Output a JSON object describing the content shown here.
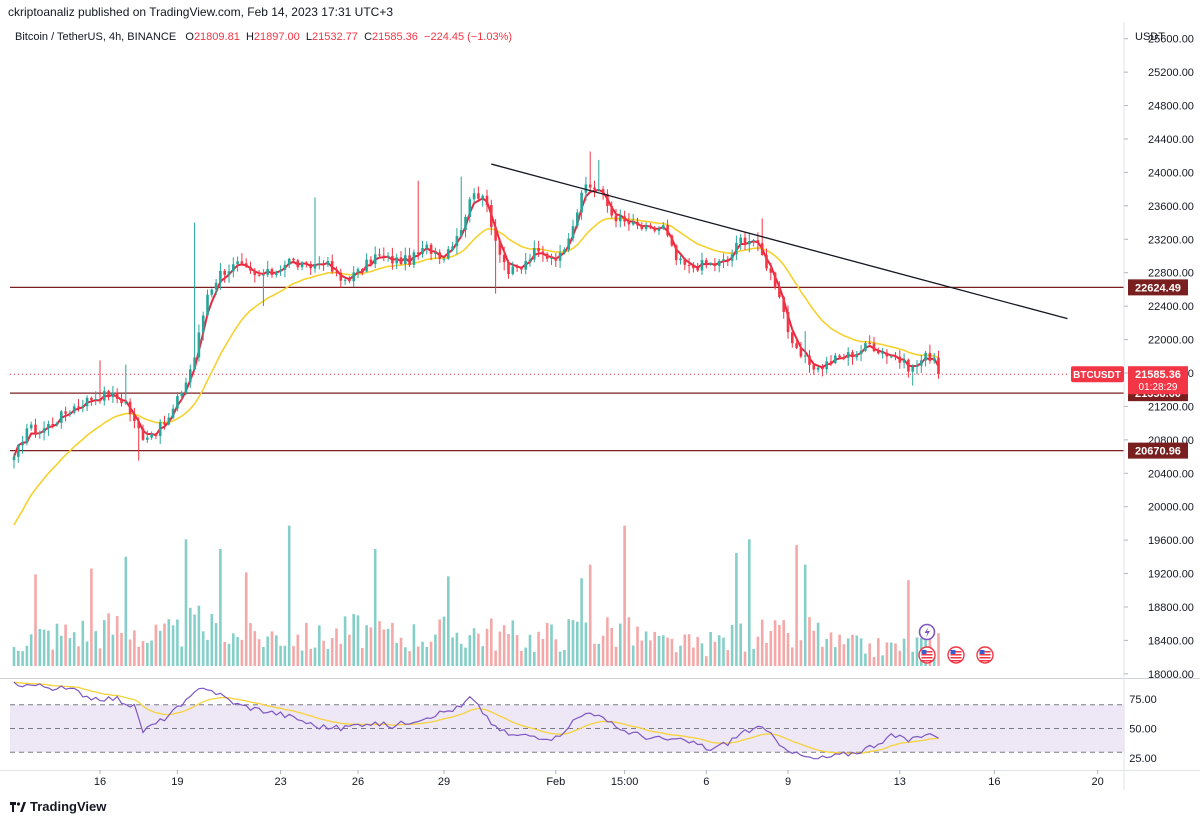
{
  "header": {
    "publisher_line": "ckriptoanaliz published on TradingView.com, Feb 14, 2023 17:31 UTC+3"
  },
  "legend": {
    "symbol": "Bitcoin / TetherUS, 4h, BINANCE",
    "open_label": "O",
    "open": "21809.81",
    "high_label": "H",
    "high": "21897.00",
    "low_label": "L",
    "low": "21532.77",
    "close_label": "C",
    "close": "21585.36",
    "change": "−224.45 (−1.03%)"
  },
  "footer": {
    "brand": "TradingView"
  },
  "colors": {
    "up": "#26a69a",
    "down": "#f23645",
    "up_volume": "#86cfc8",
    "down_volume": "#f4a8a8",
    "ema_fast": "#e8263f",
    "ema_slow": "#f6d12e",
    "trendline": "#131722",
    "level": "#7a1f1f",
    "rsi": "#7e57c2",
    "rsi_signal": "#f7d23a",
    "rsi_band": "#ede7f6"
  },
  "chart_data": {
    "type": "candlestick",
    "symbol": "BTCUSDT",
    "currency": "USDT",
    "interval": "4h",
    "price_axis": {
      "ticks": [
        18000,
        18400,
        18800,
        19200,
        19600,
        20000,
        20400,
        20800,
        21200,
        21600,
        22000,
        22400,
        22800,
        23200,
        23600,
        24000,
        24400,
        24800,
        25200,
        25600
      ],
      "range": [
        17950,
        25800
      ]
    },
    "time_axis": {
      "labels": [
        "16",
        "19",
        "23",
        "26",
        "29",
        "Feb",
        "15:00",
        "6",
        "9",
        "13",
        "16",
        "20"
      ],
      "label_bars": [
        20,
        38,
        62,
        80,
        100,
        126,
        142,
        161,
        180,
        206,
        228,
        252
      ],
      "bar_count": 216
    },
    "price_anchors": [
      [
        0,
        20550
      ],
      [
        3,
        20950
      ],
      [
        6,
        20900
      ],
      [
        10,
        21050
      ],
      [
        14,
        21200
      ],
      [
        18,
        21300
      ],
      [
        22,
        21350
      ],
      [
        26,
        21250
      ],
      [
        28,
        21000
      ],
      [
        30,
        20850
      ],
      [
        33,
        20900
      ],
      [
        36,
        21050
      ],
      [
        40,
        21500
      ],
      [
        42,
        21800
      ],
      [
        45,
        22550
      ],
      [
        48,
        22800
      ],
      [
        52,
        22900
      ],
      [
        56,
        22750
      ],
      [
        60,
        22800
      ],
      [
        64,
        22950
      ],
      [
        68,
        22850
      ],
      [
        72,
        22950
      ],
      [
        76,
        22700
      ],
      [
        80,
        22800
      ],
      [
        84,
        23000
      ],
      [
        88,
        22950
      ],
      [
        92,
        22950
      ],
      [
        96,
        23100
      ],
      [
        100,
        23000
      ],
      [
        104,
        23350
      ],
      [
        107,
        23800
      ],
      [
        110,
        23600
      ],
      [
        112,
        23200
      ],
      [
        115,
        22800
      ],
      [
        118,
        22850
      ],
      [
        121,
        23050
      ],
      [
        124,
        23000
      ],
      [
        127,
        23000
      ],
      [
        130,
        23400
      ],
      [
        133,
        23850
      ],
      [
        136,
        23800
      ],
      [
        139,
        23500
      ],
      [
        142,
        23400
      ],
      [
        145,
        23350
      ],
      [
        148,
        23300
      ],
      [
        151,
        23350
      ],
      [
        154,
        22950
      ],
      [
        157,
        22850
      ],
      [
        160,
        22900
      ],
      [
        163,
        22900
      ],
      [
        166,
        22950
      ],
      [
        169,
        23200
      ],
      [
        172,
        23200
      ],
      [
        175,
        22900
      ],
      [
        178,
        22550
      ],
      [
        181,
        21900
      ],
      [
        184,
        21750
      ],
      [
        187,
        21650
      ],
      [
        190,
        21750
      ],
      [
        193,
        21800
      ],
      [
        196,
        21850
      ],
      [
        199,
        21950
      ],
      [
        202,
        21850
      ],
      [
        205,
        21800
      ],
      [
        207,
        21700
      ],
      [
        209,
        21650
      ],
      [
        212,
        21800
      ],
      [
        214,
        21800
      ],
      [
        215,
        21585
      ]
    ],
    "price_spikes": [
      [
        20,
        21750
      ],
      [
        26,
        21700
      ],
      [
        29,
        20550
      ],
      [
        42,
        23400
      ],
      [
        58,
        22400
      ],
      [
        64,
        22950
      ],
      [
        70,
        23700
      ],
      [
        94,
        23900
      ],
      [
        104,
        23950
      ],
      [
        112,
        22550
      ],
      [
        134,
        24250
      ],
      [
        136,
        24150
      ],
      [
        174,
        23450
      ],
      [
        209,
        21450
      ],
      [
        184,
        22100
      ]
    ],
    "volume_anchors": [
      [
        0,
        12
      ],
      [
        10,
        14
      ],
      [
        20,
        16
      ],
      [
        28,
        18
      ],
      [
        30,
        12
      ],
      [
        38,
        14
      ],
      [
        42,
        18
      ],
      [
        46,
        16
      ],
      [
        54,
        12
      ],
      [
        62,
        14
      ],
      [
        70,
        12
      ],
      [
        80,
        16
      ],
      [
        90,
        13
      ],
      [
        100,
        15
      ],
      [
        110,
        15
      ],
      [
        120,
        12
      ],
      [
        130,
        15
      ],
      [
        140,
        16
      ],
      [
        150,
        10
      ],
      [
        160,
        9
      ],
      [
        170,
        14
      ],
      [
        180,
        13
      ],
      [
        186,
        16
      ],
      [
        190,
        10
      ],
      [
        200,
        8
      ],
      [
        208,
        9
      ],
      [
        215,
        12
      ]
    ],
    "volume_spikes": [
      [
        5,
        47
      ],
      [
        18,
        50
      ],
      [
        26,
        56
      ],
      [
        40,
        65
      ],
      [
        48,
        60
      ],
      [
        54,
        48
      ],
      [
        64,
        72
      ],
      [
        84,
        60
      ],
      [
        101,
        46
      ],
      [
        132,
        45
      ],
      [
        134,
        52
      ],
      [
        142,
        72
      ],
      [
        168,
        58
      ],
      [
        171,
        65
      ],
      [
        182,
        62
      ],
      [
        184,
        52
      ],
      [
        208,
        44
      ]
    ],
    "rsi_anchors": [
      [
        0,
        88
      ],
      [
        8,
        85
      ],
      [
        14,
        82
      ],
      [
        18,
        76
      ],
      [
        24,
        75
      ],
      [
        28,
        68
      ],
      [
        30,
        48
      ],
      [
        34,
        56
      ],
      [
        40,
        72
      ],
      [
        44,
        86
      ],
      [
        48,
        78
      ],
      [
        52,
        70
      ],
      [
        58,
        65
      ],
      [
        62,
        62
      ],
      [
        66,
        58
      ],
      [
        70,
        52
      ],
      [
        76,
        50
      ],
      [
        82,
        55
      ],
      [
        88,
        52
      ],
      [
        92,
        56
      ],
      [
        98,
        62
      ],
      [
        104,
        68
      ],
      [
        106,
        76
      ],
      [
        110,
        60
      ],
      [
        112,
        50
      ],
      [
        116,
        44
      ],
      [
        120,
        44
      ],
      [
        126,
        42
      ],
      [
        130,
        56
      ],
      [
        134,
        65
      ],
      [
        138,
        55
      ],
      [
        142,
        48
      ],
      [
        148,
        42
      ],
      [
        154,
        40
      ],
      [
        158,
        38
      ],
      [
        162,
        32
      ],
      [
        166,
        38
      ],
      [
        170,
        48
      ],
      [
        174,
        50
      ],
      [
        178,
        38
      ],
      [
        182,
        28
      ],
      [
        186,
        24
      ],
      [
        190,
        26
      ],
      [
        196,
        30
      ],
      [
        200,
        36
      ],
      [
        204,
        44
      ],
      [
        208,
        40
      ],
      [
        212,
        46
      ],
      [
        214,
        45
      ],
      [
        215,
        40
      ]
    ],
    "rsi_axis": {
      "ticks": [
        25,
        50,
        75
      ],
      "tick_labels": [
        "25.00",
        "50.00",
        "75.00"
      ],
      "band": [
        30,
        70
      ]
    },
    "horizontal_levels": [
      {
        "price": 22624.49,
        "label": "22624.49"
      },
      {
        "price": 21358.6,
        "label": "21358.60"
      },
      {
        "price": 20670.96,
        "label": "20670.96"
      }
    ],
    "last_price": {
      "value": 21585.36,
      "label": "21585.36",
      "symbol_tag": "BTCUSDT",
      "countdown": "01:28:29"
    },
    "trendline": {
      "from": [
        111,
        24100
      ],
      "to": [
        245,
        22250
      ]
    }
  }
}
